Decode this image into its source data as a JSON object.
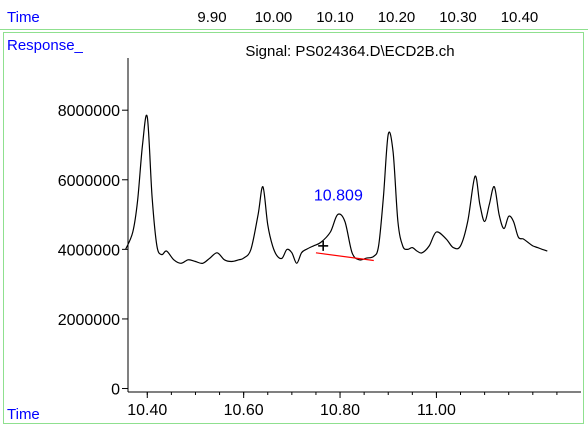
{
  "top_axis": {
    "label": "Time",
    "ticks": [
      "9.90",
      "10.00",
      "10.10",
      "10.20",
      "10.30",
      "10.40"
    ]
  },
  "panel": {
    "response_label": "Response_",
    "time_label": "Time",
    "signal_title": "Signal: PS024364.D\\ECD2B.ch"
  },
  "colors": {
    "axis_text": "#000000",
    "label_blue": "#0000ff",
    "baseline_red": "#ff0000",
    "frame_green": "#8fe08f"
  },
  "chart_data": {
    "type": "line",
    "title": "Signal: PS024364.D\\ECD2B.ch",
    "xlabel": "Time",
    "ylabel": "Response_",
    "xlim": [
      10.36,
      11.3
    ],
    "ylim": [
      -100000,
      9500000
    ],
    "x_ticks": [
      10.4,
      10.6,
      10.8,
      11.0
    ],
    "x_tick_labels": [
      "10.40",
      "10.60",
      "10.80",
      "11.00"
    ],
    "y_ticks": [
      0,
      2000000,
      4000000,
      6000000,
      8000000
    ],
    "y_tick_labels": [
      "0",
      "2000000",
      "4000000",
      "6000000",
      "8000000"
    ],
    "grid": false,
    "series": [
      {
        "x": [
          10.355,
          10.37,
          10.38,
          10.39,
          10.4,
          10.41,
          10.42,
          10.43,
          10.44,
          10.455,
          10.47,
          10.485,
          10.5,
          10.515,
          10.53,
          10.545,
          10.56,
          10.575,
          10.59,
          10.6,
          10.615,
          10.63,
          10.64,
          10.65,
          10.66,
          10.67,
          10.68,
          10.69,
          10.7,
          10.71,
          10.72,
          10.73,
          10.745,
          10.76,
          10.78,
          10.795,
          10.81,
          10.825,
          10.84,
          10.855,
          10.87,
          10.88,
          10.89,
          10.9,
          10.91,
          10.92,
          10.93,
          10.94,
          10.95,
          10.96,
          10.97,
          10.985,
          11.0,
          11.02,
          11.035,
          11.05,
          11.065,
          11.08,
          11.09,
          11.1,
          11.11,
          11.12,
          11.13,
          11.14,
          11.15,
          11.16,
          11.17,
          11.18,
          11.19,
          11.2,
          11.21,
          11.22,
          11.23
        ],
        "y": [
          4000000,
          4500000,
          5400000,
          7000000,
          7800000,
          5500000,
          4100000,
          3850000,
          3950000,
          3700000,
          3600000,
          3700000,
          3650000,
          3600000,
          3750000,
          3900000,
          3700000,
          3650000,
          3700000,
          3750000,
          4000000,
          5000000,
          5800000,
          4700000,
          4100000,
          3800000,
          3750000,
          4000000,
          3900000,
          3600000,
          3900000,
          4000000,
          4100000,
          4200000,
          4500000,
          5000000,
          4800000,
          3900000,
          3700000,
          3750000,
          3800000,
          4100000,
          5500000,
          7300000,
          6800000,
          4800000,
          4100000,
          4000000,
          4050000,
          3950000,
          3900000,
          4100000,
          4500000,
          4300000,
          4050000,
          4100000,
          4800000,
          6100000,
          5300000,
          4800000,
          5300000,
          5800000,
          5000000,
          4600000,
          4950000,
          4800000,
          4350000,
          4300000,
          4200000,
          4100000,
          4050000,
          4000000,
          3950000
        ]
      }
    ],
    "annotations": [
      {
        "text": "10.809",
        "x": 10.809,
        "y": 5000000
      }
    ],
    "baseline_segment": {
      "x": [
        10.75,
        10.87
      ],
      "y": [
        3900000,
        3680000
      ]
    },
    "cursor_marker": {
      "x": 10.765,
      "y": 4100000
    }
  }
}
